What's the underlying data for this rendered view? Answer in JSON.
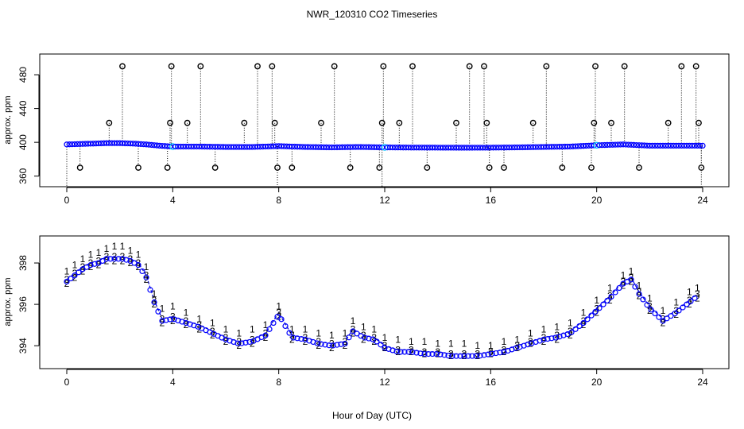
{
  "title": "NWR_120310  CO2 Timeseries",
  "xlabel": "Hour of Day (UTC)",
  "colors": {
    "frame": "#000000",
    "stem": "#000000",
    "series1": "#ff0000",
    "series2": "#00c000",
    "series3": "#0000ff",
    "circle": "#000000",
    "highlight": "#00c8ff",
    "line": "#0000cc"
  },
  "chart_data": [
    {
      "type": "scatter",
      "name": "top-panel",
      "ylabel": "approx. ppm",
      "xlim": [
        0,
        24
      ],
      "ylim": [
        355,
        497
      ],
      "xticks": [
        0,
        4,
        8,
        12,
        16,
        20,
        24
      ],
      "yticks": [
        360,
        400,
        440,
        480
      ],
      "baseline": [
        [
          0,
          397.5
        ],
        [
          0.5,
          398
        ],
        [
          1,
          398.5
        ],
        [
          1.5,
          399
        ],
        [
          2,
          399
        ],
        [
          2.5,
          398.5
        ],
        [
          3,
          397.5
        ],
        [
          3.5,
          396
        ],
        [
          4,
          395
        ],
        [
          5,
          395
        ],
        [
          6,
          394.5
        ],
        [
          7,
          394.5
        ],
        [
          8,
          395.5
        ],
        [
          9,
          394.5
        ],
        [
          10,
          394
        ],
        [
          11,
          394.5
        ],
        [
          12,
          394
        ],
        [
          13,
          393.8
        ],
        [
          14,
          393.7
        ],
        [
          15,
          393.6
        ],
        [
          16,
          393.7
        ],
        [
          17,
          394
        ],
        [
          18,
          394.5
        ],
        [
          19,
          395
        ],
        [
          20,
          396.5
        ],
        [
          21,
          397.5
        ],
        [
          22,
          396
        ],
        [
          23,
          396
        ],
        [
          24,
          396
        ]
      ],
      "outliers": [
        {
          "x": 0.5,
          "y": 370
        },
        {
          "x": 1.6,
          "y": 423
        },
        {
          "x": 2.1,
          "y": 490
        },
        {
          "x": 2.7,
          "y": 370
        },
        {
          "x": 3.8,
          "y": 370
        },
        {
          "x": 3.9,
          "y": 423
        },
        {
          "x": 3.95,
          "y": 490
        },
        {
          "x": 4.55,
          "y": 423
        },
        {
          "x": 5.05,
          "y": 490
        },
        {
          "x": 5.6,
          "y": 370
        },
        {
          "x": 6.7,
          "y": 423
        },
        {
          "x": 7.2,
          "y": 490
        },
        {
          "x": 7.75,
          "y": 490
        },
        {
          "x": 7.85,
          "y": 423
        },
        {
          "x": 7.95,
          "y": 370
        },
        {
          "x": 8.5,
          "y": 370
        },
        {
          "x": 9.6,
          "y": 423
        },
        {
          "x": 10.1,
          "y": 490
        },
        {
          "x": 10.7,
          "y": 370
        },
        {
          "x": 11.8,
          "y": 370
        },
        {
          "x": 11.9,
          "y": 423
        },
        {
          "x": 11.95,
          "y": 490
        },
        {
          "x": 12.55,
          "y": 423
        },
        {
          "x": 13.05,
          "y": 490
        },
        {
          "x": 13.6,
          "y": 370
        },
        {
          "x": 14.7,
          "y": 423
        },
        {
          "x": 15.2,
          "y": 490
        },
        {
          "x": 15.75,
          "y": 490
        },
        {
          "x": 15.85,
          "y": 423
        },
        {
          "x": 15.95,
          "y": 370
        },
        {
          "x": 16.5,
          "y": 370
        },
        {
          "x": 17.6,
          "y": 423
        },
        {
          "x": 18.1,
          "y": 490
        },
        {
          "x": 18.7,
          "y": 370
        },
        {
          "x": 19.8,
          "y": 370
        },
        {
          "x": 19.9,
          "y": 423
        },
        {
          "x": 19.95,
          "y": 490
        },
        {
          "x": 20.55,
          "y": 423
        },
        {
          "x": 21.05,
          "y": 490
        },
        {
          "x": 21.6,
          "y": 370
        },
        {
          "x": 22.7,
          "y": 423
        },
        {
          "x": 23.2,
          "y": 490
        },
        {
          "x": 23.75,
          "y": 490
        },
        {
          "x": 23.85,
          "y": 423
        },
        {
          "x": 23.95,
          "y": 370
        }
      ]
    },
    {
      "type": "line",
      "name": "bottom-panel",
      "ylabel": "approx. ppm",
      "xlim": [
        0,
        24
      ],
      "ylim": [
        393.2,
        399.0
      ],
      "xticks": [
        0,
        4,
        8,
        12,
        16,
        20,
        24
      ],
      "yticks": [
        394,
        396,
        398
      ],
      "series": [
        {
          "name": "1",
          "symbol": "1",
          "offset": 0.55,
          "points": [
            [
              0,
              397.6
            ],
            [
              0.3,
              397.9
            ],
            [
              0.6,
              398.2
            ],
            [
              0.9,
              398.4
            ],
            [
              1.2,
              398.5
            ],
            [
              1.5,
              398.7
            ],
            [
              1.8,
              398.8
            ],
            [
              2.1,
              398.8
            ],
            [
              2.4,
              398.6
            ],
            [
              2.7,
              398.4
            ],
            [
              3.0,
              397.8
            ],
            [
              3.3,
              396.5
            ],
            [
              3.6,
              395.8
            ],
            [
              4.0,
              395.9
            ],
            [
              4.5,
              395.6
            ],
            [
              5.0,
              395.3
            ],
            [
              5.5,
              395.1
            ],
            [
              6.0,
              394.8
            ],
            [
              6.5,
              394.6
            ],
            [
              7.0,
              394.8
            ],
            [
              7.5,
              395.0
            ],
            [
              8.0,
              395.9
            ],
            [
              8.5,
              394.8
            ],
            [
              9.0,
              394.8
            ],
            [
              9.5,
              394.6
            ],
            [
              10.0,
              394.5
            ],
            [
              10.5,
              394.6
            ],
            [
              10.8,
              395.2
            ],
            [
              11.2,
              394.9
            ],
            [
              11.6,
              394.8
            ],
            [
              12.0,
              394.4
            ],
            [
              12.5,
              394.3
            ],
            [
              13.0,
              394.2
            ],
            [
              13.5,
              394.2
            ],
            [
              14.0,
              394.1
            ],
            [
              14.5,
              394.1
            ],
            [
              15.0,
              394.1
            ],
            [
              15.5,
              394.0
            ],
            [
              16.0,
              394.0
            ],
            [
              16.5,
              394.2
            ],
            [
              17.0,
              394.3
            ],
            [
              17.5,
              394.6
            ],
            [
              18.0,
              394.8
            ],
            [
              18.5,
              394.9
            ],
            [
              19.0,
              395.1
            ],
            [
              19.5,
              395.6
            ],
            [
              20.0,
              396.2
            ],
            [
              20.5,
              396.8
            ],
            [
              21.0,
              397.4
            ],
            [
              21.3,
              397.6
            ],
            [
              21.6,
              396.9
            ],
            [
              22.0,
              396.3
            ],
            [
              22.5,
              395.7
            ],
            [
              23.0,
              396.1
            ],
            [
              23.5,
              396.6
            ],
            [
              23.8,
              396.8
            ]
          ]
        },
        {
          "name": "2",
          "symbol": "2",
          "offset": -0.25,
          "points": [
            [
              0,
              397.0
            ],
            [
              0.3,
              397.3
            ],
            [
              0.6,
              397.6
            ],
            [
              0.9,
              397.8
            ],
            [
              1.2,
              397.9
            ],
            [
              1.5,
              398.1
            ],
            [
              1.8,
              398.1
            ],
            [
              2.1,
              398.1
            ],
            [
              2.4,
              398.0
            ],
            [
              2.7,
              397.8
            ],
            [
              3.0,
              397.2
            ],
            [
              3.3,
              396.0
            ],
            [
              3.6,
              395.1
            ],
            [
              4.0,
              395.2
            ],
            [
              4.5,
              395.0
            ],
            [
              5.0,
              394.8
            ],
            [
              5.5,
              394.5
            ],
            [
              6.0,
              394.2
            ],
            [
              6.5,
              394.0
            ],
            [
              7.0,
              394.1
            ],
            [
              7.5,
              394.4
            ],
            [
              8.0,
              395.4
            ],
            [
              8.5,
              394.3
            ],
            [
              9.0,
              394.2
            ],
            [
              9.5,
              394.0
            ],
            [
              10.0,
              393.9
            ],
            [
              10.5,
              394.0
            ],
            [
              10.8,
              394.6
            ],
            [
              11.2,
              394.3
            ],
            [
              11.6,
              394.2
            ],
            [
              12.0,
              393.9
            ],
            [
              12.5,
              393.7
            ],
            [
              13.0,
              393.7
            ],
            [
              13.5,
              393.6
            ],
            [
              14.0,
              393.6
            ],
            [
              14.5,
              393.5
            ],
            [
              15.0,
              393.5
            ],
            [
              15.5,
              393.5
            ],
            [
              16.0,
              393.6
            ],
            [
              16.5,
              393.7
            ],
            [
              17.0,
              393.9
            ],
            [
              17.5,
              394.1
            ],
            [
              18.0,
              394.2
            ],
            [
              18.5,
              394.3
            ],
            [
              19.0,
              394.5
            ],
            [
              19.5,
              395.0
            ],
            [
              20.0,
              395.6
            ],
            [
              20.5,
              396.2
            ],
            [
              21.0,
              396.9
            ],
            [
              21.3,
              397.1
            ],
            [
              21.6,
              396.4
            ],
            [
              22.0,
              395.7
            ],
            [
              22.5,
              395.1
            ],
            [
              23.0,
              395.5
            ],
            [
              23.5,
              396.0
            ],
            [
              23.8,
              396.3
            ]
          ]
        },
        {
          "name": "3",
          "symbol": "3",
          "offset": 0.0,
          "points": [
            [
              0,
              397.2
            ],
            [
              0.3,
              397.5
            ],
            [
              0.6,
              397.8
            ],
            [
              0.9,
              398.0
            ],
            [
              1.2,
              398.1
            ],
            [
              1.5,
              398.3
            ],
            [
              1.8,
              398.3
            ],
            [
              2.1,
              398.3
            ],
            [
              2.4,
              398.2
            ],
            [
              2.7,
              398.0
            ],
            [
              3.0,
              397.4
            ],
            [
              3.3,
              396.2
            ],
            [
              3.6,
              395.3
            ],
            [
              4.0,
              395.4
            ],
            [
              4.5,
              395.2
            ],
            [
              5.0,
              395.0
            ],
            [
              5.5,
              394.7
            ],
            [
              6.0,
              394.4
            ],
            [
              6.5,
              394.2
            ],
            [
              7.0,
              394.3
            ],
            [
              7.5,
              394.6
            ],
            [
              8.0,
              395.6
            ],
            [
              8.5,
              394.5
            ],
            [
              9.0,
              394.4
            ],
            [
              9.5,
              394.2
            ],
            [
              10.0,
              394.1
            ],
            [
              10.5,
              394.2
            ],
            [
              10.8,
              394.8
            ],
            [
              11.2,
              394.5
            ],
            [
              11.6,
              394.4
            ],
            [
              12.0,
              394.0
            ],
            [
              12.5,
              393.8
            ],
            [
              13.0,
              393.8
            ],
            [
              13.5,
              393.7
            ],
            [
              14.0,
              393.7
            ],
            [
              14.5,
              393.6
            ],
            [
              15.0,
              393.6
            ],
            [
              15.5,
              393.6
            ],
            [
              16.0,
              393.7
            ],
            [
              16.5,
              393.8
            ],
            [
              17.0,
              394.0
            ],
            [
              17.5,
              394.2
            ],
            [
              18.0,
              394.4
            ],
            [
              18.5,
              394.5
            ],
            [
              19.0,
              394.7
            ],
            [
              19.5,
              395.2
            ],
            [
              20.0,
              395.8
            ],
            [
              20.5,
              396.4
            ],
            [
              21.0,
              397.1
            ],
            [
              21.3,
              397.3
            ],
            [
              21.6,
              396.6
            ],
            [
              22.0,
              395.9
            ],
            [
              22.5,
              395.3
            ],
            [
              23.0,
              395.7
            ],
            [
              23.5,
              396.2
            ],
            [
              23.8,
              396.5
            ]
          ]
        }
      ]
    }
  ]
}
